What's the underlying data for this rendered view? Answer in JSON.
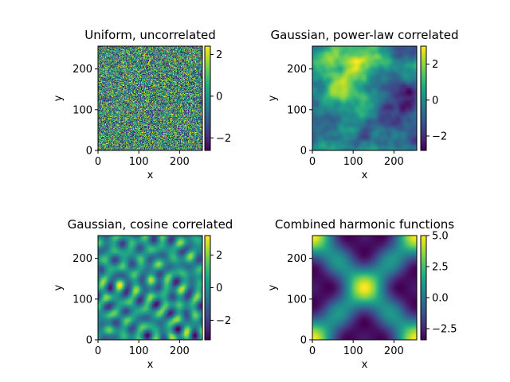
{
  "colormap": "viridis",
  "chart_data": [
    {
      "type": "heatmap",
      "title": "Uniform, uncorrelated",
      "field": "uniform-noise",
      "xlabel": "x",
      "ylabel": "y",
      "xlim": [
        0,
        256
      ],
      "ylim": [
        0,
        256
      ],
      "xticks": [
        "0",
        "100",
        "200"
      ],
      "xtick_values": [
        0,
        100,
        200
      ],
      "yticks": [
        "0",
        "100",
        "200"
      ],
      "ytick_values": [
        0,
        100,
        200
      ],
      "colorbar": {
        "range": [
          -2.6,
          2.4
        ],
        "ticks": [
          "2",
          "0",
          "−2"
        ],
        "tick_values": [
          2,
          0,
          -2
        ]
      }
    },
    {
      "type": "heatmap",
      "title": "Gaussian, power-law correlated",
      "field": "power-law-noise",
      "xlabel": "x",
      "ylabel": "y",
      "xlim": [
        0,
        256
      ],
      "ylim": [
        0,
        256
      ],
      "xticks": [
        "0",
        "100",
        "200"
      ],
      "xtick_values": [
        0,
        100,
        200
      ],
      "yticks": [
        "0",
        "100",
        "200"
      ],
      "ytick_values": [
        0,
        100,
        200
      ],
      "colorbar": {
        "range": [
          -2.8,
          3.0
        ],
        "ticks": [
          "2",
          "0",
          "−2"
        ],
        "tick_values": [
          2,
          0,
          -2
        ]
      }
    },
    {
      "type": "heatmap",
      "title": "Gaussian, cosine correlated",
      "field": "cosine-correlated",
      "xlabel": "x",
      "ylabel": "y",
      "xlim": [
        0,
        256
      ],
      "ylim": [
        0,
        256
      ],
      "xticks": [
        "0",
        "100",
        "200"
      ],
      "xtick_values": [
        0,
        100,
        200
      ],
      "yticks": [
        "0",
        "100",
        "200"
      ],
      "ytick_values": [
        0,
        100,
        200
      ],
      "colorbar": {
        "range": [
          -3.2,
          3.2
        ],
        "ticks": [
          "2",
          "0",
          "−2"
        ],
        "tick_values": [
          2,
          0,
          -2
        ]
      }
    },
    {
      "type": "heatmap",
      "title": "Combined harmonic functions",
      "field": "harmonic",
      "xlabel": "x",
      "ylabel": "y",
      "xlim": [
        0,
        256
      ],
      "ylim": [
        0,
        256
      ],
      "xticks": [
        "0",
        "100",
        "200"
      ],
      "xtick_values": [
        0,
        100,
        200
      ],
      "yticks": [
        "0",
        "100",
        "200"
      ],
      "ytick_values": [
        0,
        100,
        200
      ],
      "colorbar": {
        "range": [
          -3.4,
          5.0
        ],
        "ticks": [
          "5.0",
          "2.5",
          "0.0",
          "−2.5"
        ],
        "tick_values": [
          5.0,
          2.5,
          0.0,
          -2.5
        ]
      }
    }
  ]
}
